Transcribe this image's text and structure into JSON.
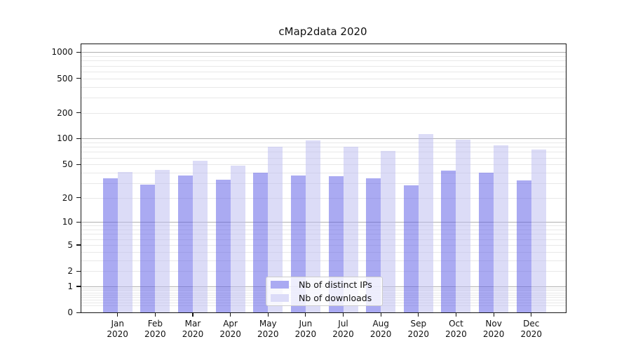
{
  "title": "cMap2data 2020",
  "chart_data": {
    "type": "bar",
    "title": "cMap2data 2020",
    "categories": [
      "Jan",
      "Feb",
      "Mar",
      "Apr",
      "May",
      "Jun",
      "Jul",
      "Aug",
      "Sep",
      "Oct",
      "Nov",
      "Dec"
    ],
    "category_year": "2020",
    "series": [
      {
        "name": "Nb of distinct IPs",
        "color": "#aaaaf2",
        "fill": "rgba(85,85,230,0.5)",
        "values": [
          34,
          29,
          37,
          33,
          40,
          37,
          36,
          34,
          28,
          42,
          40,
          32
        ]
      },
      {
        "name": "Nb of downloads",
        "color": "#dcdcf8",
        "fill": "rgba(185,185,240,0.5)",
        "values": [
          41,
          43,
          55,
          48,
          80,
          95,
          81,
          72,
          114,
          98,
          84,
          75
        ]
      }
    ],
    "yscale": "log1p",
    "yticks": [
      0,
      1,
      2,
      5,
      10,
      20,
      50,
      100,
      200,
      500,
      1000
    ],
    "ylim": [
      0,
      1238
    ],
    "grid": true,
    "legend_position": "lower center",
    "xlabel": "",
    "ylabel": ""
  },
  "colors": {
    "major_grid": "#b0b0b0",
    "minor_grid": "#e8e8e8",
    "spine": "#151515",
    "legend_border": "#cccccc",
    "text": "#111111"
  }
}
